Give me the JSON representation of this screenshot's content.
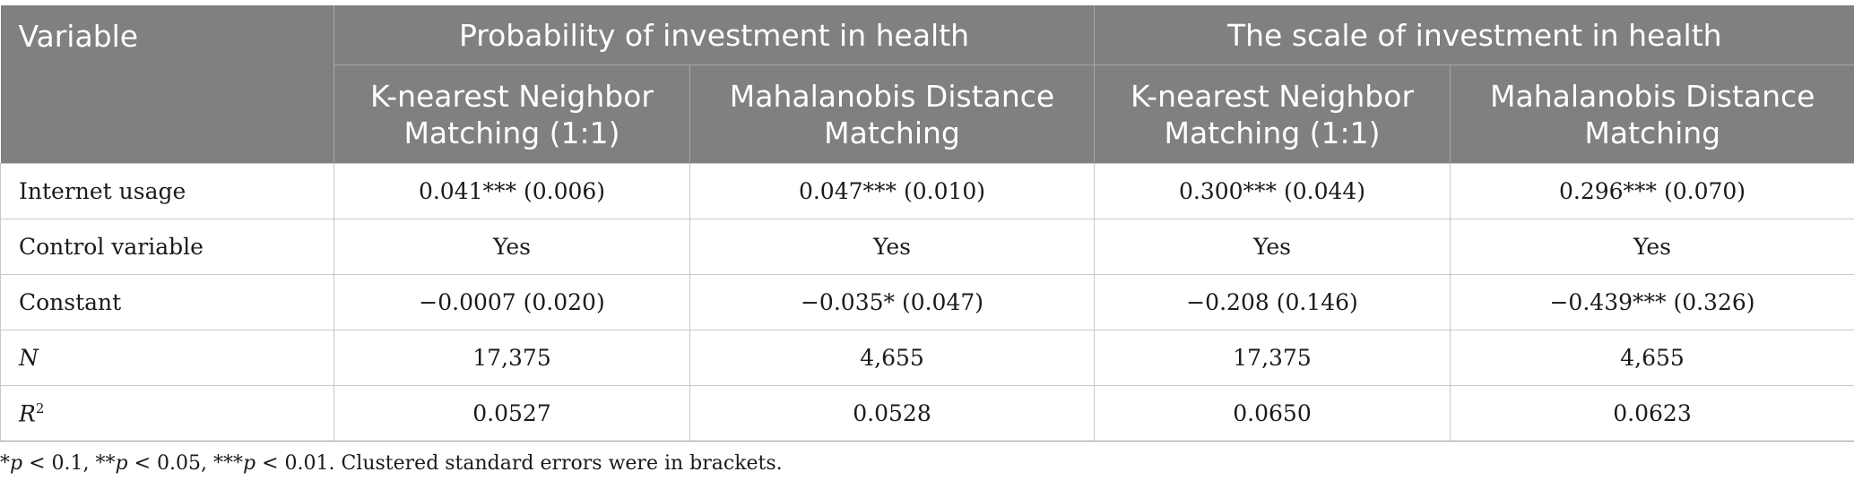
{
  "table": {
    "header": {
      "variable": "Variable",
      "groups": [
        "Probability of investment in health",
        "The scale of investment in health"
      ],
      "methods": [
        "K-nearest Neighbor Matching (1:1)",
        "Mahalanobis Distance Matching",
        "K-nearest Neighbor Matching (1:1)",
        "Mahalanobis Distance Matching"
      ]
    },
    "rows": [
      {
        "label": "Internet usage",
        "cells": [
          "0.041*** (0.006)",
          "0.047*** (0.010)",
          "0.300*** (0.044)",
          "0.296*** (0.070)"
        ]
      },
      {
        "label": "Control variable",
        "cells": [
          "Yes",
          "Yes",
          "Yes",
          "Yes"
        ]
      },
      {
        "label": "Constant",
        "cells": [
          "−0.0007 (0.020)",
          "−0.035* (0.047)",
          "−0.208 (0.146)",
          "−0.439*** (0.326)"
        ]
      },
      {
        "label": "N",
        "cells": [
          "17,375",
          "4,655",
          "17,375",
          "4,655"
        ]
      },
      {
        "label": "R",
        "label_sup": "2",
        "cells": [
          "0.0527",
          "0.0528",
          "0.0650",
          "0.0623"
        ]
      }
    ]
  },
  "footnote": {
    "p1": "p",
    "t1": " < 0.1, **",
    "p2": "p",
    "t2": " < 0.05, ***",
    "p3": "p",
    "t3": " < 0.01. Clustered standard errors were in brackets.",
    "lead": "*"
  }
}
